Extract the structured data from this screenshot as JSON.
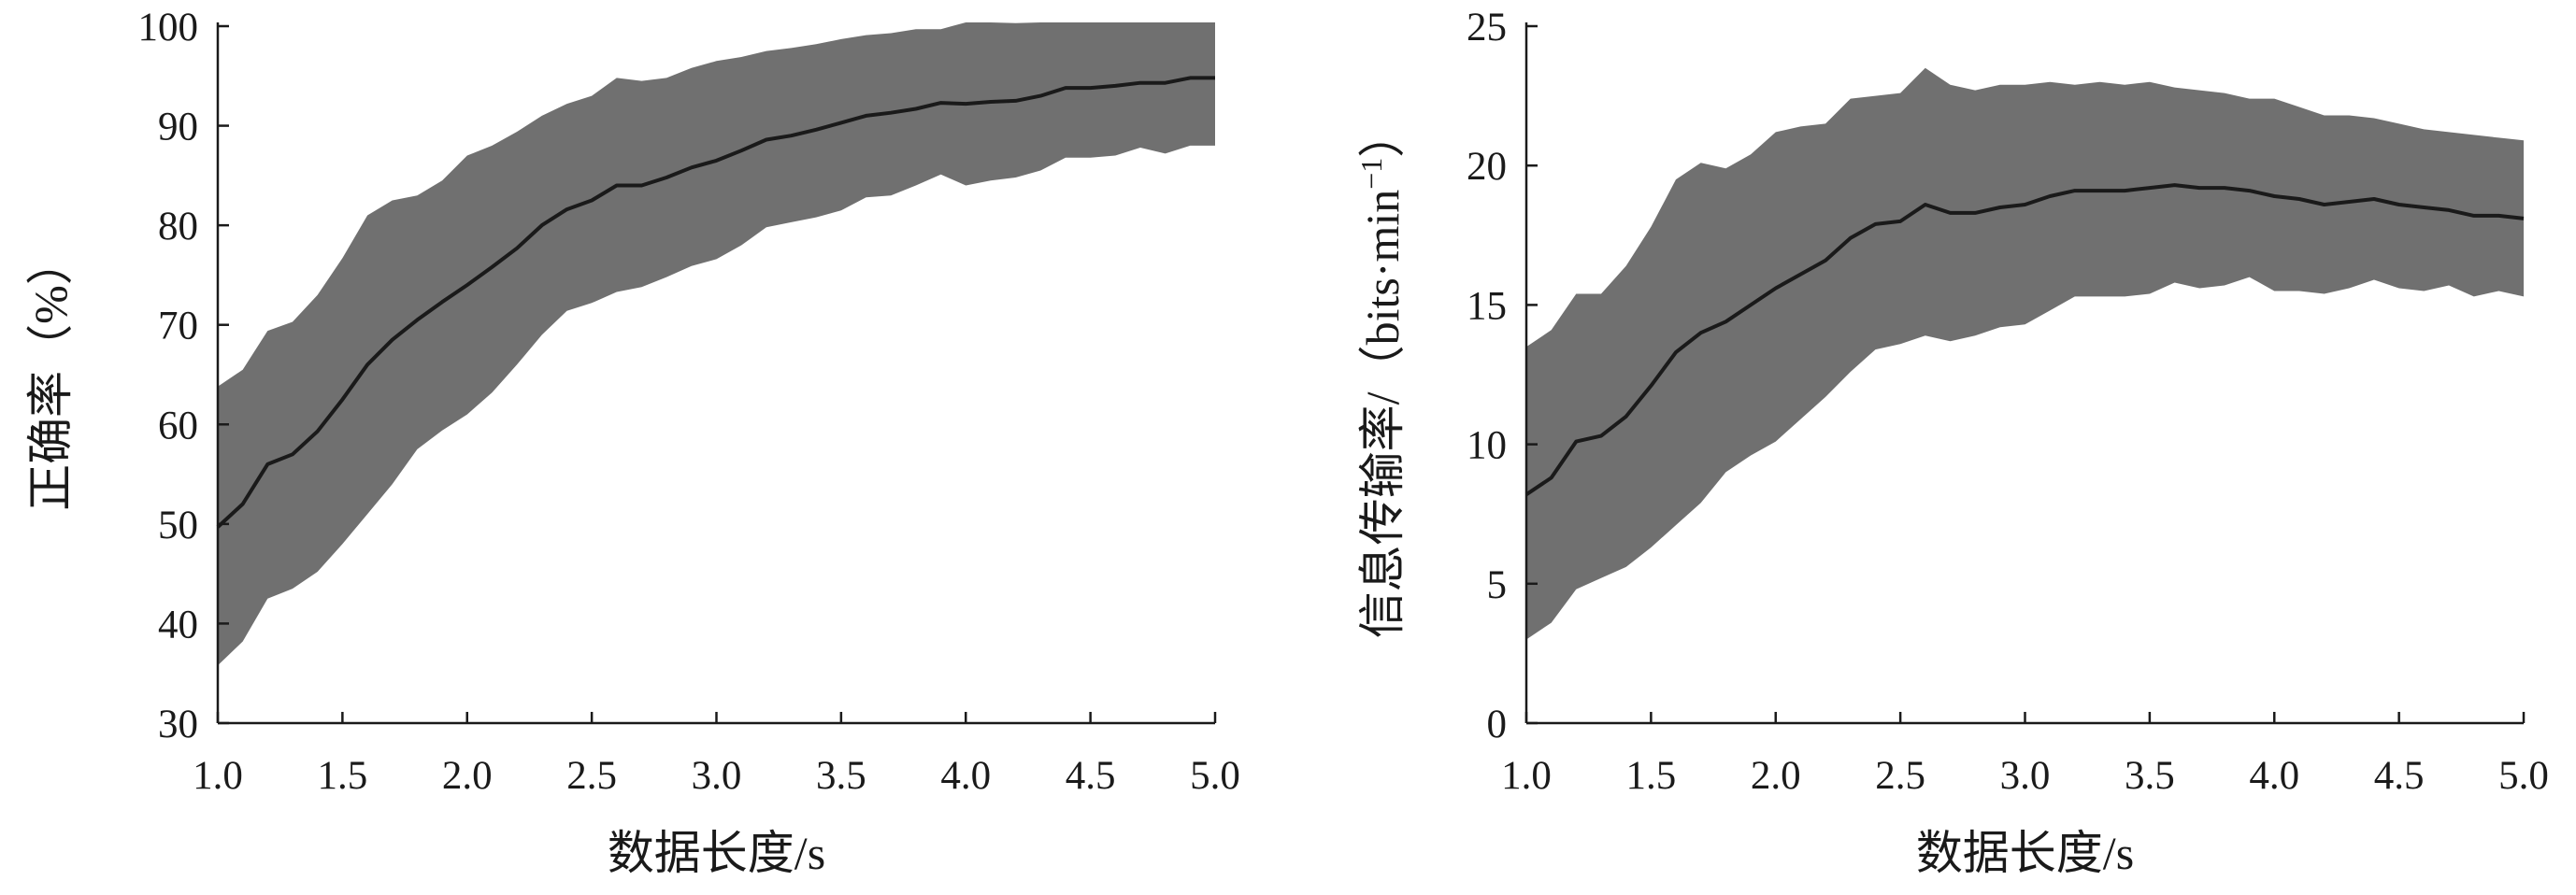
{
  "chart_data": [
    {
      "type": "area",
      "title": "",
      "xlabel": "数据长度/s",
      "ylabel": "正确率（%）",
      "xlim": [
        1.0,
        5.0
      ],
      "ylim": [
        30,
        100
      ],
      "x_ticks": [
        "1.0",
        "1.5",
        "2.0",
        "2.5",
        "3.0",
        "3.5",
        "4.0",
        "4.5",
        "5.0"
      ],
      "y_ticks": [
        "30",
        "40",
        "50",
        "60",
        "70",
        "80",
        "90",
        "100"
      ],
      "grid": false,
      "colors": {
        "band": "#707070",
        "line": "#1a1a1a",
        "axis": "#1a1a1a"
      },
      "x": [
        1.0,
        1.1,
        1.2,
        1.3,
        1.4,
        1.5,
        1.6,
        1.7,
        1.8,
        1.9,
        2.0,
        2.1,
        2.2,
        2.3,
        2.4,
        2.5,
        2.6,
        2.7,
        2.8,
        2.9,
        3.0,
        3.1,
        3.2,
        3.3,
        3.4,
        3.5,
        3.6,
        3.7,
        3.8,
        3.9,
        4.0,
        4.1,
        4.2,
        4.3,
        4.4,
        4.5,
        4.6,
        4.7,
        4.8,
        4.9,
        5.0
      ],
      "series": [
        {
          "role": "mean",
          "values": [
            49.7,
            52.0,
            56.0,
            57.0,
            59.3,
            62.5,
            66.0,
            68.5,
            70.5,
            72.3,
            74.0,
            75.8,
            77.7,
            80.0,
            81.6,
            82.5,
            84.0,
            84.0,
            84.8,
            85.8,
            86.5,
            87.5,
            88.6,
            89.0,
            89.6,
            90.3,
            91.0,
            91.3,
            91.7,
            92.3,
            92.2,
            92.4,
            92.5,
            93.0,
            93.8,
            93.8,
            94.0,
            94.3,
            94.3,
            94.8,
            94.8
          ]
        },
        {
          "role": "upper",
          "values": [
            63.8,
            65.5,
            69.4,
            70.3,
            73.0,
            76.7,
            81.0,
            82.5,
            83.0,
            84.5,
            87.0,
            88.0,
            89.4,
            91.0,
            92.2,
            93.0,
            94.8,
            94.5,
            94.8,
            95.8,
            96.5,
            96.9,
            97.5,
            97.8,
            98.2,
            98.7,
            99.1,
            99.3,
            99.7,
            99.7,
            100.5,
            100.5,
            100.3,
            100.8,
            101.0,
            101.1,
            101.0,
            101.3,
            101.7,
            101.8,
            102.0
          ]
        },
        {
          "role": "lower",
          "values": [
            35.8,
            38.2,
            42.5,
            43.5,
            45.2,
            48.0,
            51.0,
            54.0,
            57.5,
            59.4,
            61.0,
            63.2,
            66.0,
            69.0,
            71.4,
            72.2,
            73.3,
            73.8,
            74.8,
            75.9,
            76.6,
            78.0,
            79.8,
            80.3,
            80.8,
            81.5,
            82.8,
            83.0,
            84.0,
            85.1,
            84.0,
            84.5,
            84.8,
            85.5,
            86.8,
            86.8,
            87.0,
            87.8,
            87.2,
            88.0,
            88.0
          ]
        }
      ]
    },
    {
      "type": "area",
      "title": "",
      "xlabel": "数据长度/s",
      "ylabel": "信息传输率/（bits·min",
      "ylabel_superscript": "−1",
      "ylabel_suffix": "）",
      "xlim": [
        1.0,
        5.0
      ],
      "ylim": [
        0,
        25
      ],
      "x_ticks": [
        "1.0",
        "1.5",
        "2.0",
        "2.5",
        "3.0",
        "3.5",
        "4.0",
        "4.5",
        "5.0"
      ],
      "y_ticks": [
        "0",
        "5",
        "10",
        "15",
        "20",
        "25"
      ],
      "grid": false,
      "colors": {
        "band": "#707070",
        "line": "#1a1a1a",
        "axis": "#1a1a1a"
      },
      "x": [
        1.0,
        1.1,
        1.2,
        1.3,
        1.4,
        1.5,
        1.6,
        1.7,
        1.8,
        1.9,
        2.0,
        2.1,
        2.2,
        2.3,
        2.4,
        2.5,
        2.6,
        2.7,
        2.8,
        2.9,
        3.0,
        3.1,
        3.2,
        3.3,
        3.4,
        3.5,
        3.6,
        3.7,
        3.8,
        3.9,
        4.0,
        4.1,
        4.2,
        4.3,
        4.4,
        4.5,
        4.6,
        4.7,
        4.8,
        4.9,
        5.0
      ],
      "series": [
        {
          "role": "mean",
          "values": [
            8.2,
            8.8,
            10.1,
            10.3,
            11.0,
            12.1,
            13.3,
            14.0,
            14.4,
            15.0,
            15.6,
            16.1,
            16.6,
            17.4,
            17.9,
            18.0,
            18.6,
            18.3,
            18.3,
            18.5,
            18.6,
            18.9,
            19.1,
            19.1,
            19.1,
            19.2,
            19.3,
            19.2,
            19.2,
            19.1,
            18.9,
            18.8,
            18.6,
            18.7,
            18.8,
            18.6,
            18.5,
            18.4,
            18.2,
            18.2,
            18.1
          ]
        },
        {
          "role": "upper",
          "values": [
            13.5,
            14.1,
            15.4,
            15.4,
            16.4,
            17.8,
            19.5,
            20.1,
            19.9,
            20.4,
            21.2,
            21.4,
            21.5,
            22.4,
            22.5,
            22.6,
            23.5,
            22.9,
            22.7,
            22.9,
            22.9,
            23.0,
            22.9,
            23.0,
            22.9,
            23.0,
            22.8,
            22.7,
            22.6,
            22.4,
            22.4,
            22.1,
            21.8,
            21.8,
            21.7,
            21.5,
            21.3,
            21.2,
            21.1,
            21.0,
            20.9
          ]
        },
        {
          "role": "lower",
          "values": [
            3.0,
            3.6,
            4.8,
            5.2,
            5.6,
            6.3,
            7.1,
            7.9,
            9.0,
            9.6,
            10.1,
            10.9,
            11.7,
            12.6,
            13.4,
            13.6,
            13.9,
            13.7,
            13.9,
            14.2,
            14.3,
            14.8,
            15.3,
            15.3,
            15.3,
            15.4,
            15.8,
            15.6,
            15.7,
            16.0,
            15.5,
            15.5,
            15.4,
            15.6,
            15.9,
            15.6,
            15.5,
            15.7,
            15.3,
            15.5,
            15.3
          ]
        }
      ]
    }
  ]
}
